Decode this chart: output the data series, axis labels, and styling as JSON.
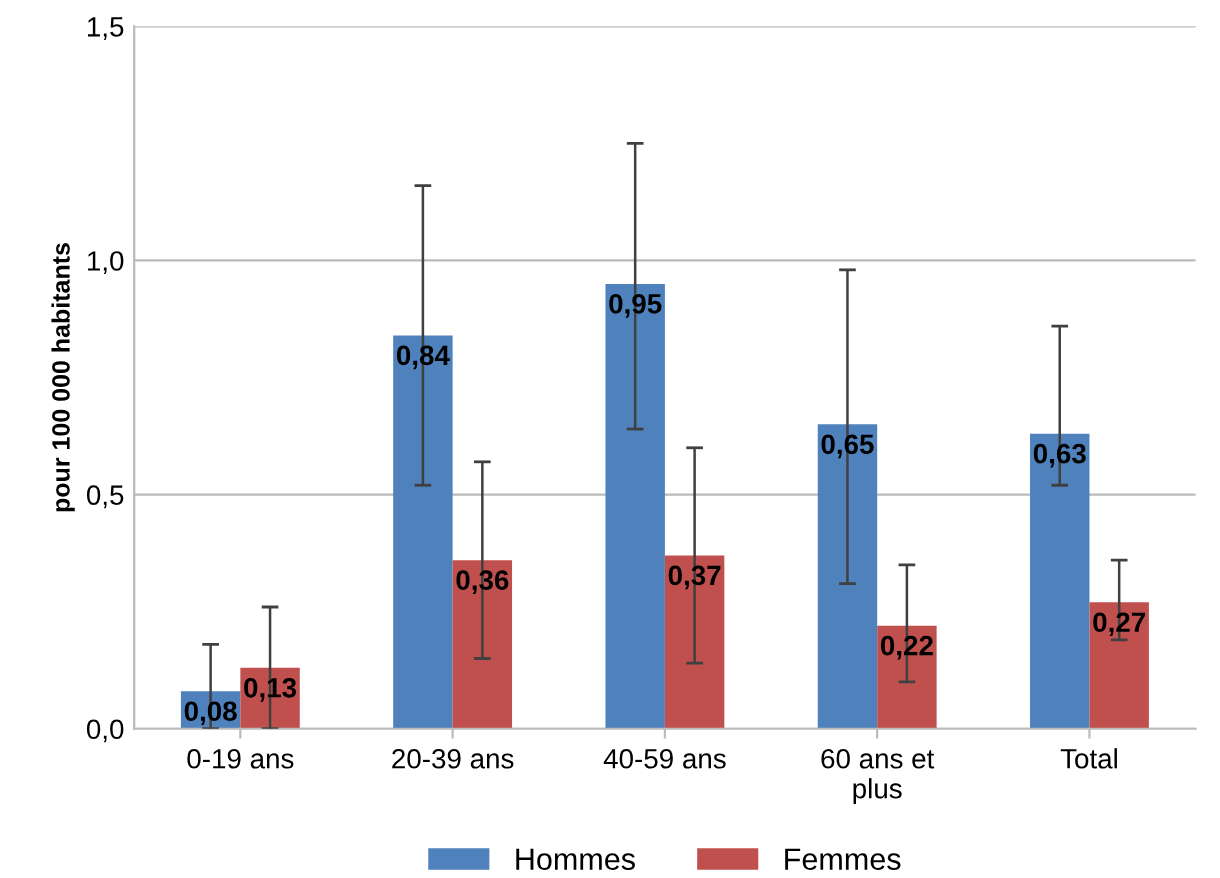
{
  "chart_data": {
    "type": "bar",
    "ylabel": "pour 100 000 habitants",
    "categories": [
      "0-19 ans",
      "20-39 ans",
      "40-59 ans",
      "60 ans et\nplus",
      "Total"
    ],
    "series": [
      {
        "name": "Hommes",
        "color": "#4f81bd",
        "values": [
          0.08,
          0.84,
          0.95,
          0.65,
          0.63
        ],
        "value_labels": [
          "0,08",
          "0,84",
          "0,95",
          "0,65",
          "0,63"
        ],
        "errors": [
          [
            0.0,
            0.18
          ],
          [
            0.52,
            1.16
          ],
          [
            0.64,
            1.25
          ],
          [
            0.31,
            0.98
          ],
          [
            0.52,
            0.86
          ]
        ]
      },
      {
        "name": "Femmes",
        "color": "#c0504d",
        "values": [
          0.13,
          0.36,
          0.37,
          0.22,
          0.27
        ],
        "value_labels": [
          "0,13",
          "0,36",
          "0,37",
          "0,22",
          "0,27"
        ],
        "errors": [
          [
            0.0,
            0.26
          ],
          [
            0.15,
            0.57
          ],
          [
            0.14,
            0.6
          ],
          [
            0.1,
            0.35
          ],
          [
            0.19,
            0.36
          ]
        ]
      }
    ],
    "ylim": [
      0,
      1.5
    ],
    "yticks": [
      {
        "value": 0,
        "label": "0,0"
      },
      {
        "value": 0.5,
        "label": "0,5"
      },
      {
        "value": 1.0,
        "label": "1,0"
      },
      {
        "value": 1.5,
        "label": "1,5"
      }
    ],
    "grid": "y",
    "legend": "bottom"
  }
}
